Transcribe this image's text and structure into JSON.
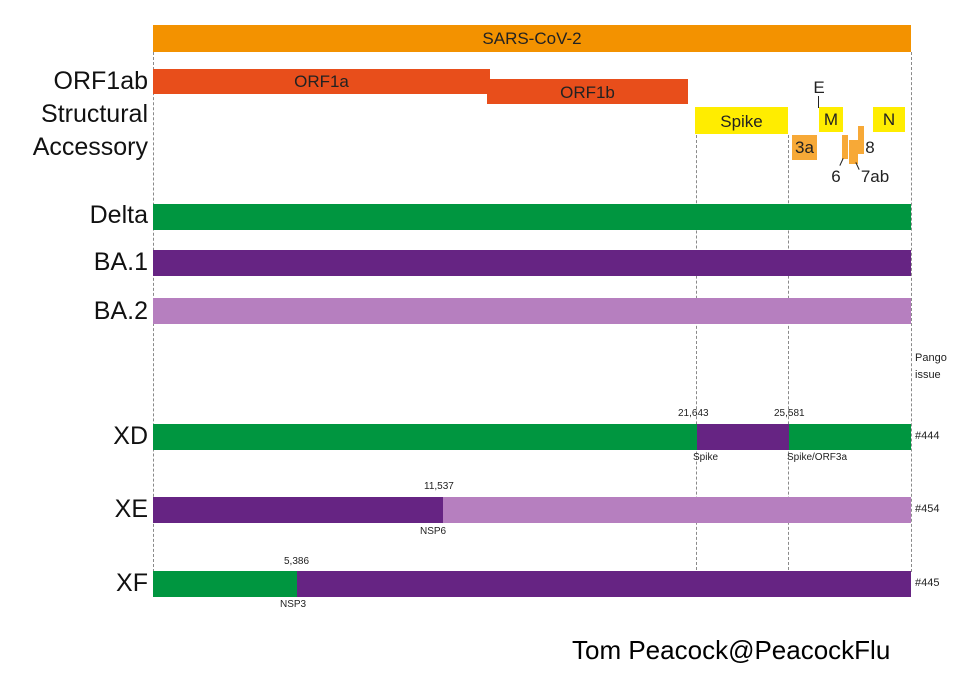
{
  "genome": {
    "title": "SARS-CoV-2",
    "orf1a": "ORF1a",
    "orf1b": "ORF1b",
    "spike": "Spike",
    "e": "E",
    "m": "M",
    "n": "N",
    "a3": "3a",
    "a6": "6",
    "a7ab": "7ab",
    "a8": "8"
  },
  "row_labels": {
    "orf1ab": "ORF1ab",
    "structural": "Structural",
    "accessory": "Accessory",
    "delta": "Delta",
    "ba1": "BA.1",
    "ba2": "BA.2",
    "xd": "XD",
    "xe": "XE",
    "xf": "XF"
  },
  "pango_header": [
    "Pango",
    "issue"
  ],
  "recombinants": {
    "xd": {
      "bp1": "21,643",
      "bp2": "25,581",
      "gene1": "Spike",
      "gene2": "Spike/ORF3a",
      "issue": "#444"
    },
    "xe": {
      "bp": "11,537",
      "gene": "NSP6",
      "issue": "#454"
    },
    "xf": {
      "bp": "5,386",
      "gene": "NSP3",
      "issue": "#445"
    }
  },
  "credit": "Tom Peacock@PeacockFlu",
  "colors": {
    "sars": "#f39200",
    "orf": "#e84e1b",
    "structural": "#ffed00",
    "accessory": "#f7a937",
    "delta": "#009640",
    "ba1": "#662483",
    "ba2": "#b67fbf"
  }
}
